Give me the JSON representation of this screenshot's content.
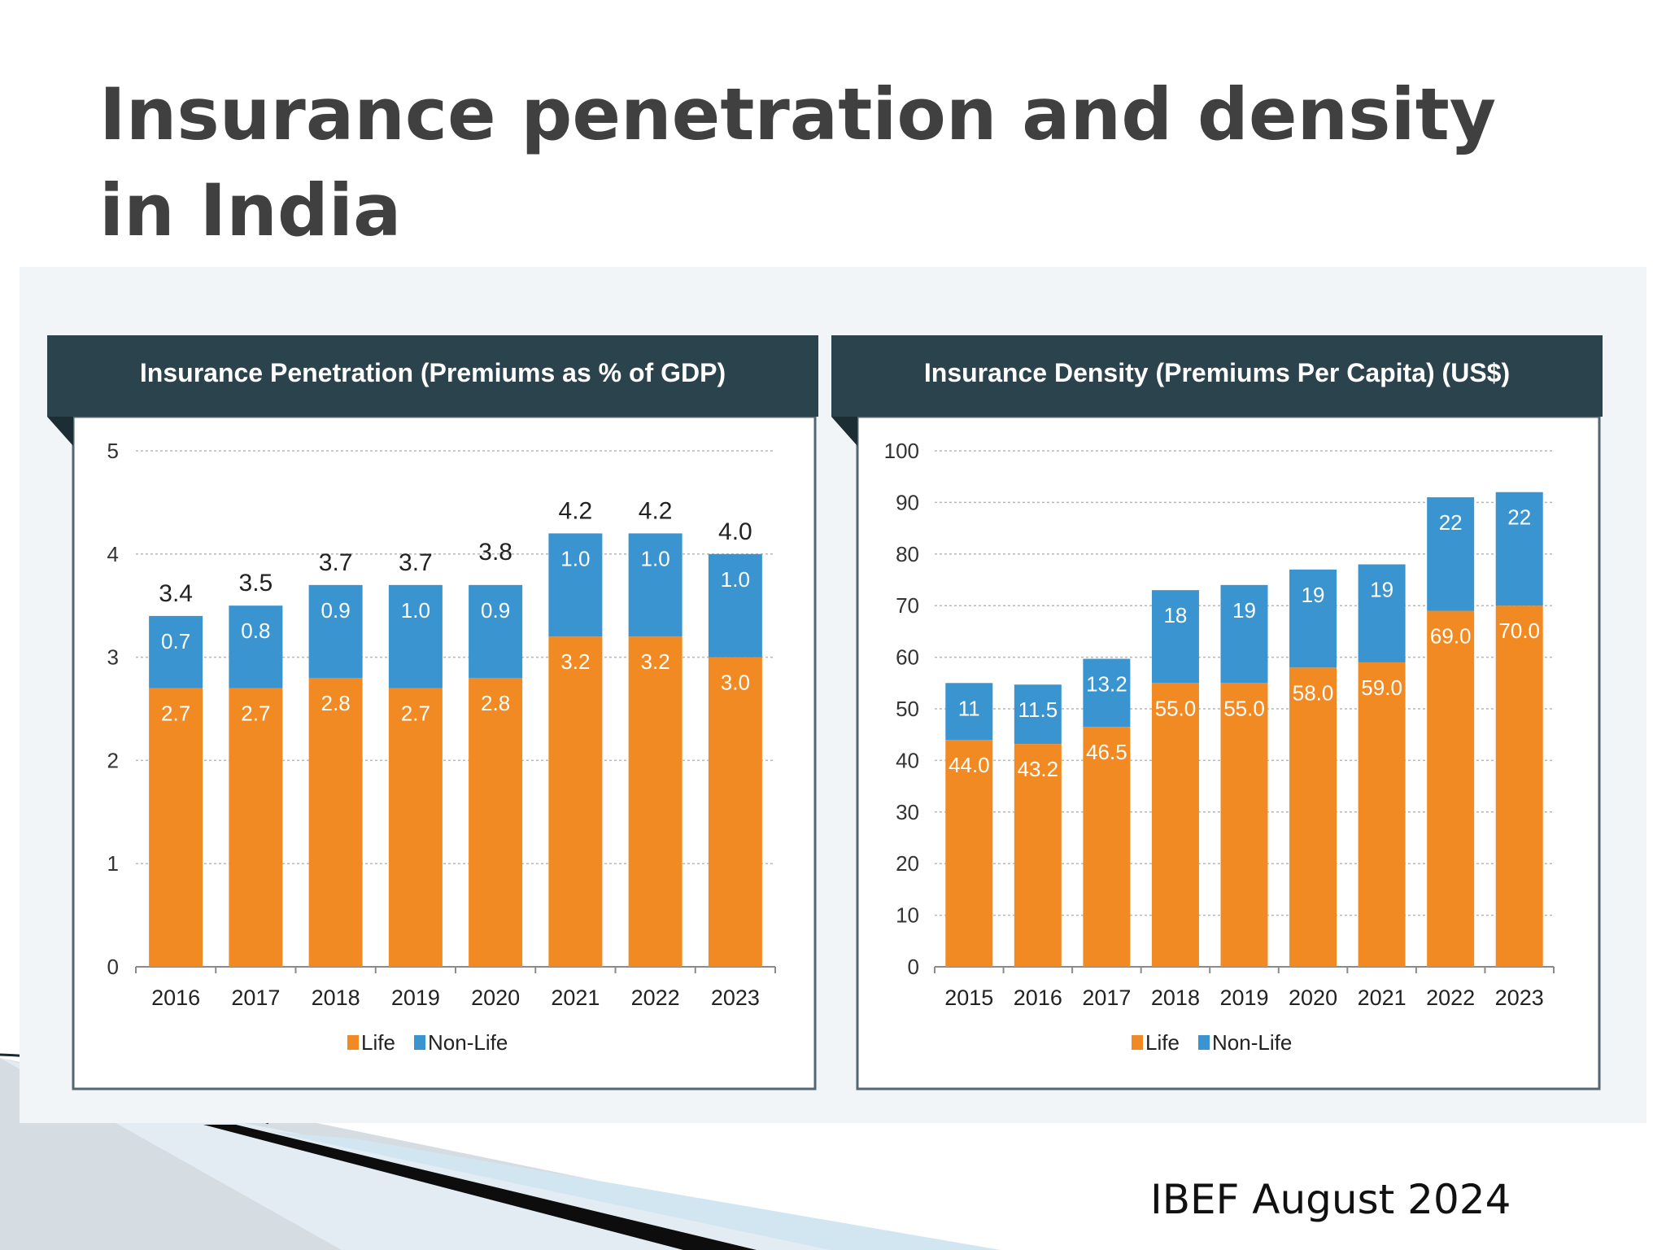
{
  "slide": {
    "title_line1": "Insurance penetration and density",
    "title_line2": "in India",
    "source": "IBEF August 2024"
  },
  "colors": {
    "life": "#f28a24",
    "non_life": "#3a94d0",
    "header": "#2b434d",
    "title_text": "#404040"
  },
  "chart_data": [
    {
      "type": "bar",
      "stacked": true,
      "title": "Insurance Penetration (Premiums as % of GDP)",
      "categories": [
        "2016",
        "2017",
        "2018",
        "2019",
        "2020",
        "2021",
        "2022",
        "2023"
      ],
      "series": [
        {
          "name": "Life",
          "color": "#f28a24",
          "values": [
            2.7,
            2.7,
            2.8,
            2.7,
            2.8,
            3.2,
            3.2,
            3.0
          ],
          "labels": [
            "2.7",
            "2.7",
            "2.8",
            "2.7",
            "2.8",
            "3.2",
            "3.2",
            "3.0"
          ]
        },
        {
          "name": "Non-Life",
          "color": "#3a94d0",
          "values": [
            0.7,
            0.8,
            0.9,
            1.0,
            0.9,
            1.0,
            1.0,
            1.0
          ],
          "labels": [
            "0.7",
            "0.8",
            "0.9",
            "1.0",
            "0.9",
            "1.0",
            "1.0",
            "1.0"
          ]
        }
      ],
      "totals": [
        3.4,
        3.5,
        3.7,
        3.7,
        3.8,
        4.2,
        4.2,
        4.0
      ],
      "total_labels": [
        "3.4",
        "3.5",
        "3.7",
        "3.7",
        "3.8",
        "4.2",
        "4.2",
        "4.0"
      ],
      "ylim": [
        0,
        5
      ],
      "yticks": [
        "0",
        "1",
        "2",
        "3",
        "4",
        "5"
      ],
      "grid": true,
      "legend": "bottom-center",
      "xlabel": "",
      "ylabel": ""
    },
    {
      "type": "bar",
      "stacked": true,
      "title": "Insurance Density (Premiums Per Capita) (US$)",
      "categories": [
        "2015",
        "2016",
        "2017",
        "2018",
        "2019",
        "2020",
        "2021",
        "2022",
        "2023"
      ],
      "series": [
        {
          "name": "Life",
          "color": "#f28a24",
          "values": [
            44.0,
            43.2,
            46.5,
            55.0,
            55.0,
            58.0,
            59.0,
            69.0,
            70.0
          ],
          "labels": [
            "44.0",
            "43.2",
            "46.5",
            "55.0",
            "55.0",
            "58.0",
            "59.0",
            "69.0",
            "70.0"
          ]
        },
        {
          "name": "Non-Life",
          "color": "#3a94d0",
          "values": [
            11,
            11.5,
            13.2,
            18,
            19,
            19,
            19,
            22,
            22
          ],
          "labels": [
            "11",
            "11.5",
            "13.2",
            "18",
            "19",
            "19",
            "19",
            "22",
            "22"
          ]
        }
      ],
      "ylim": [
        0,
        100
      ],
      "yticks": [
        "0",
        "10",
        "20",
        "30",
        "40",
        "50",
        "60",
        "70",
        "80",
        "90",
        "100"
      ],
      "grid": true,
      "legend": "bottom-center",
      "xlabel": "",
      "ylabel": ""
    }
  ]
}
